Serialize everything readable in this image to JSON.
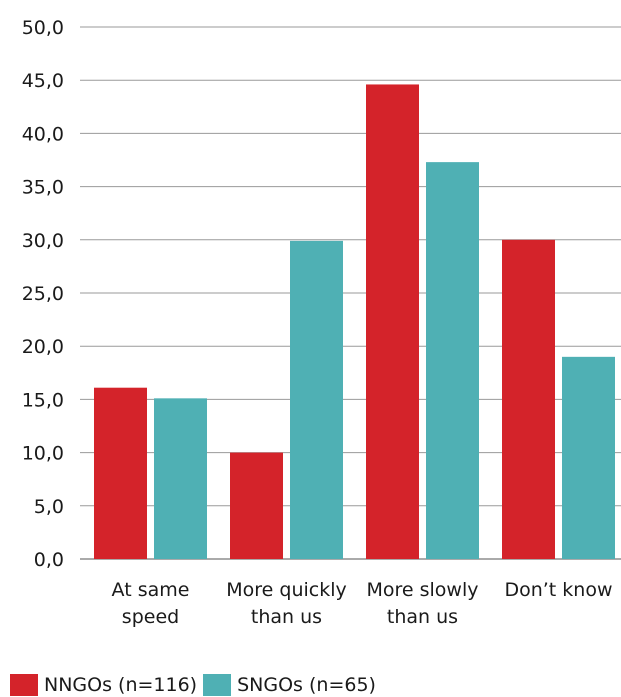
{
  "chart_data": {
    "type": "bar",
    "categories": [
      [
        "At same",
        "speed"
      ],
      [
        "More quickly",
        "than us"
      ],
      [
        "More slowly",
        "than us"
      ],
      [
        "Don’t know"
      ]
    ],
    "series": [
      {
        "name": "NNGOs (n=116)",
        "color": "#d4232a",
        "values": [
          16.1,
          10.0,
          44.6,
          30.0
        ]
      },
      {
        "name": "SNGOs (n=65)",
        "color": "#4fb0b4",
        "values": [
          15.1,
          29.9,
          37.3,
          19.0
        ]
      }
    ],
    "y_ticks": [
      "0,0",
      "5,0",
      "10,0",
      "15,0",
      "20,0",
      "25,0",
      "30,0",
      "35,0",
      "40,0",
      "45,0",
      "50,0"
    ],
    "ylim": [
      0,
      50
    ],
    "grid": true,
    "legend_position": "bottom-left",
    "title": "",
    "xlabel": "",
    "ylabel": ""
  }
}
